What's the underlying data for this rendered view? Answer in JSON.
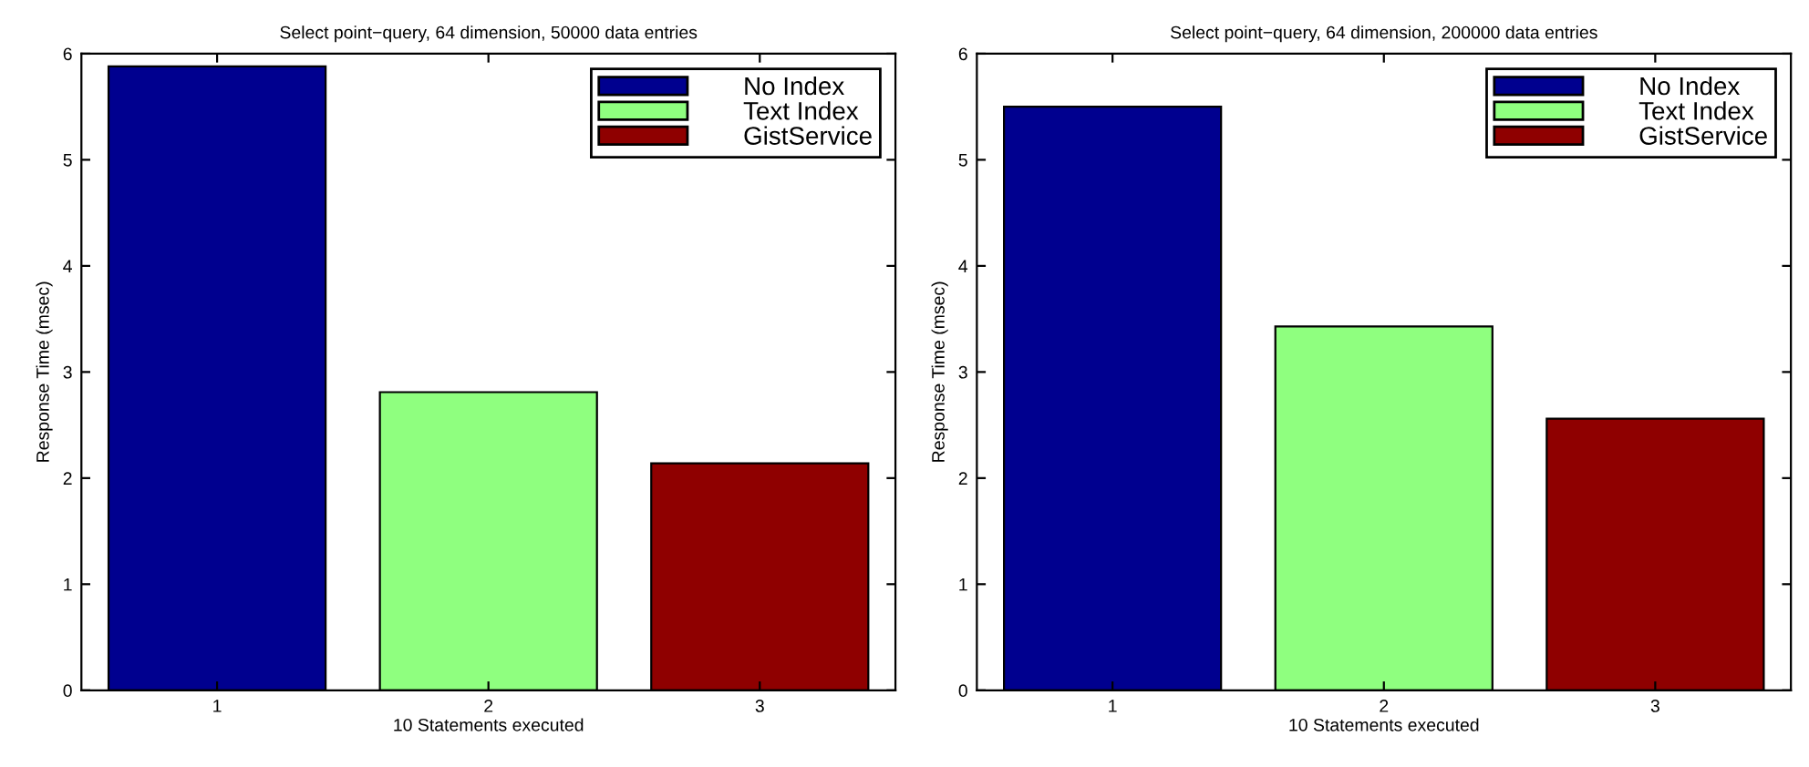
{
  "chart_data": [
    {
      "type": "bar",
      "title": "Select point−query, 64 dimension, 50000 data entries",
      "xlabel": "10 Statements executed",
      "ylabel": "Response Time (msec)",
      "categories": [
        "1",
        "2",
        "3"
      ],
      "ylim": [
        0,
        6
      ],
      "yticks": [
        0,
        1,
        2,
        3,
        4,
        5,
        6
      ],
      "legend": "top right",
      "grid": false,
      "series": [
        {
          "name": "No Index",
          "color": "#00008f",
          "values": [
            5.88,
            null,
            null
          ]
        },
        {
          "name": "Text Index",
          "color": "#8fff7f",
          "values": [
            null,
            2.81,
            null
          ]
        },
        {
          "name": "GistService",
          "color": "#8f0000",
          "values": [
            null,
            null,
            2.14
          ]
        }
      ]
    },
    {
      "type": "bar",
      "title": "Select point−query, 64 dimension, 200000 data entries",
      "xlabel": "10 Statements executed",
      "ylabel": "Response Time (msec)",
      "categories": [
        "1",
        "2",
        "3"
      ],
      "ylim": [
        0,
        6
      ],
      "yticks": [
        0,
        1,
        2,
        3,
        4,
        5,
        6
      ],
      "legend": "top right",
      "grid": false,
      "series": [
        {
          "name": "No Index",
          "color": "#00008f",
          "values": [
            5.5,
            null,
            null
          ]
        },
        {
          "name": "Text Index",
          "color": "#8fff7f",
          "values": [
            null,
            3.43,
            null
          ]
        },
        {
          "name": "GistService",
          "color": "#8f0000",
          "values": [
            null,
            null,
            2.56
          ]
        }
      ]
    }
  ]
}
